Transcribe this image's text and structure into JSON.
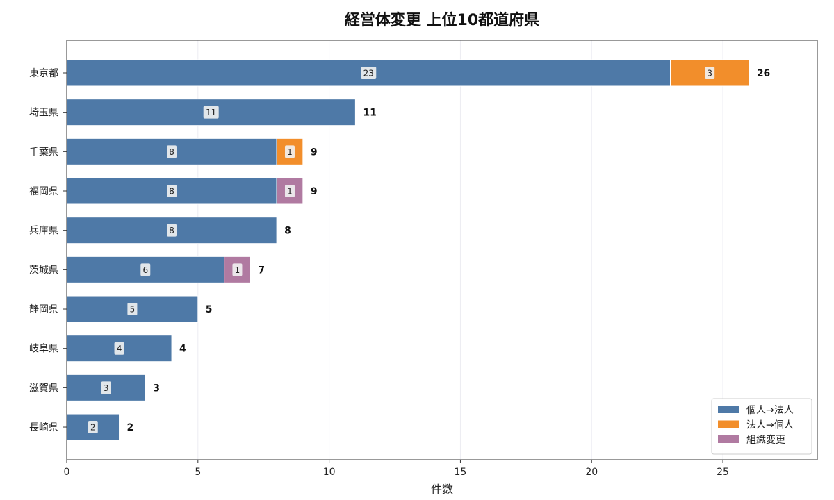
{
  "chart_data": {
    "type": "bar",
    "orientation": "horizontal",
    "stacked": true,
    "title": "経営体変更 上位10都道府県",
    "xlabel": "件数",
    "ylabel": "",
    "xlim": [
      0,
      28.6
    ],
    "xticks": [
      0,
      5,
      10,
      15,
      20,
      25
    ],
    "grid": "vertical",
    "legend_position": "bottom-right",
    "categories": [
      "東京都",
      "埼玉県",
      "千葉県",
      "福岡県",
      "兵庫県",
      "茨城県",
      "静岡県",
      "岐阜県",
      "滋賀県",
      "長崎県"
    ],
    "series": [
      {
        "name": "個人→法人",
        "color": "#4e79a7",
        "values": [
          23,
          11,
          8,
          8,
          8,
          6,
          5,
          4,
          3,
          2
        ]
      },
      {
        "name": "法人→個人",
        "color": "#f28e2b",
        "values": [
          3,
          0,
          1,
          0,
          0,
          0,
          0,
          0,
          0,
          0
        ]
      },
      {
        "name": "組織変更",
        "color": "#b07aa1",
        "values": [
          0,
          0,
          0,
          1,
          0,
          1,
          0,
          0,
          0,
          0
        ]
      }
    ],
    "totals": [
      26,
      11,
      9,
      9,
      8,
      7,
      5,
      4,
      3,
      2
    ]
  }
}
